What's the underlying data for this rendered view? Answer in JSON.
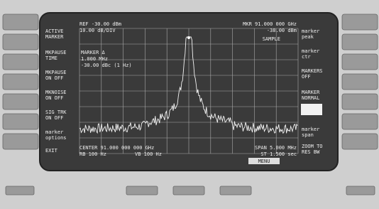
{
  "screen": {
    "header_left": [
      "REF -30.00 dBm",
      "10.00 dB/DIV"
    ],
    "header_right": [
      "MKR 91.000 000 GHz",
      "-38.00 dBm"
    ],
    "marker_readout": [
      "MARKER Δ",
      "1.000 MHz",
      "-30.00 dBc (1 Hz)"
    ],
    "mode": "SAMPLE",
    "footer": [
      "CENTER 91.000 000 000 GHz",
      "RB 100 Hz",
      "VB 100 Hz",
      "SPAN 5.000 MHz",
      "ST 1.500 sec"
    ],
    "menu": "MENU"
  },
  "left_softkeys": [
    [
      "ACTIVE",
      "MARKER"
    ],
    [
      "MKPAUSE",
      "TIME"
    ],
    [
      "MKPAUSE",
      "ON OFF"
    ],
    [
      "MKNOISE",
      "ON OFF"
    ],
    [
      "SIG TRK",
      "ON OFF"
    ],
    [
      "marker",
      "options"
    ],
    [
      "EXIT"
    ]
  ],
  "right_softkeys": [
    [
      "marker",
      "peak"
    ],
    [
      "marker",
      "ctr"
    ],
    [
      "MARKERS",
      "OFF"
    ],
    [
      "MARKER",
      "NORMAL"
    ],
    [
      "marker",
      "span"
    ],
    [
      "ZOOM TO",
      "RES BW"
    ]
  ]
}
